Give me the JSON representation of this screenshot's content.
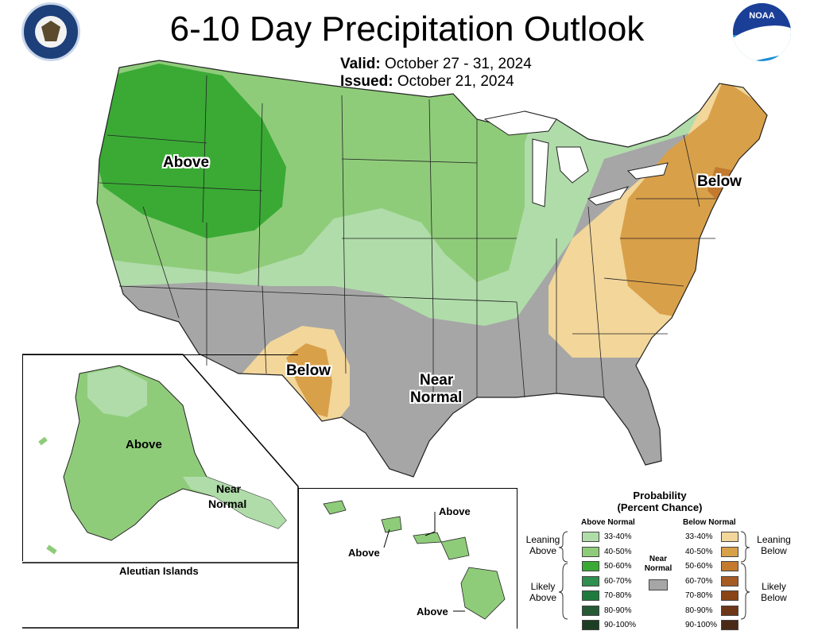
{
  "title": "6-10 Day Precipitation Outlook",
  "valid": {
    "label": "Valid:",
    "value": "October 27 - 31, 2024"
  },
  "issued": {
    "label": "Issued:",
    "value": "October 21, 2024"
  },
  "logos": {
    "left": "department-of-commerce-seal",
    "right": "NOAA"
  },
  "map_labels": {
    "northwest": "Above",
    "northeast": "Below",
    "southwest": "Below",
    "south_line1": "Near",
    "south_line2": "Normal"
  },
  "alaska": {
    "above": "Above",
    "near_line1": "Near",
    "near_line2": "Normal",
    "aleutian": "Aleutian Islands"
  },
  "hawaii": {
    "above_1": "Above",
    "above_2": "Above",
    "above_3": "Above"
  },
  "legend": {
    "title_line1": "Probability",
    "title_line2": "(Percent Chance)",
    "above_heading": "Above Normal",
    "below_heading": "Below Normal",
    "near_line1": "Near",
    "near_line2": "Normal",
    "leaning_above_line1": "Leaning",
    "leaning_above_line2": "Above",
    "likely_above_line1": "Likely",
    "likely_above_line2": "Above",
    "leaning_below_line1": "Leaning",
    "leaning_below_line2": "Below",
    "likely_below_line1": "Likely",
    "likely_below_line2": "Below",
    "above_rows": [
      {
        "range": "33-40%",
        "color": "#b0dcaa"
      },
      {
        "range": "40-50%",
        "color": "#8fcc7a"
      },
      {
        "range": "50-60%",
        "color": "#3aaa35"
      },
      {
        "range": "60-70%",
        "color": "#2f8f4e"
      },
      {
        "range": "70-80%",
        "color": "#1f7a3e"
      },
      {
        "range": "80-90%",
        "color": "#265a35"
      },
      {
        "range": "90-100%",
        "color": "#1c3e22"
      }
    ],
    "below_rows": [
      {
        "range": "33-40%",
        "color": "#f2d69a"
      },
      {
        "range": "40-50%",
        "color": "#d9a04a"
      },
      {
        "range": "50-60%",
        "color": "#c37a2e"
      },
      {
        "range": "60-70%",
        "color": "#a65b23"
      },
      {
        "range": "70-80%",
        "color": "#8a4418"
      },
      {
        "range": "80-90%",
        "color": "#6e3618"
      },
      {
        "range": "90-100%",
        "color": "#4a2a16"
      }
    ],
    "near_color": "#a6a6a6"
  },
  "colors": {
    "near_normal": "#a6a6a6",
    "above_33_40": "#b0dcaa",
    "above_40_50": "#8fcc7a",
    "above_50_60": "#3aaa35",
    "below_33_40": "#f2d69a",
    "below_40_50": "#d9a04a",
    "below_50_60": "#c37a2e",
    "state_line": "#222222"
  }
}
